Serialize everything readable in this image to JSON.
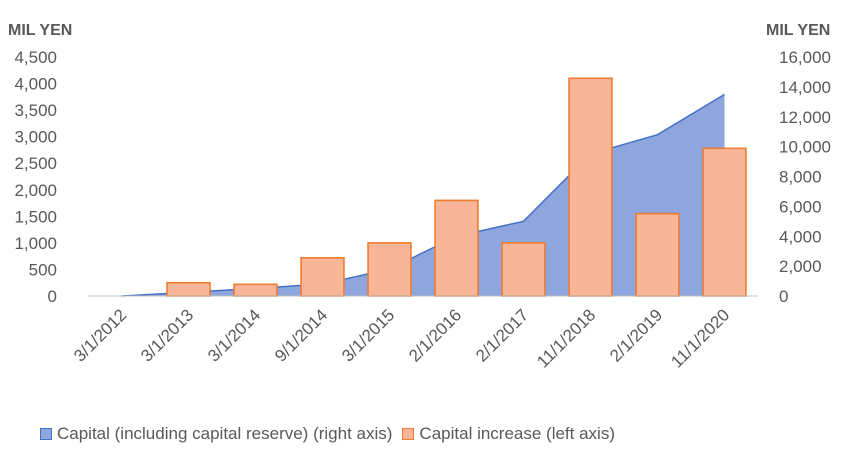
{
  "chart_data": {
    "type": "bar",
    "categories": [
      "3/1/2012",
      "3/1/2013",
      "3/1/2014",
      "9/1/2014",
      "3/1/2015",
      "2/1/2016",
      "2/1/2017",
      "11/1/2018",
      "2/1/2019",
      "11/1/2020"
    ],
    "series": [
      {
        "name": "Capital (including capital reserve) (right axis)",
        "type": "area",
        "axis": "right",
        "color": "#8EA5DD",
        "line_color": "#4472C4",
        "values": [
          0,
          250,
          500,
          800,
          1800,
          4000,
          5000,
          9500,
          10800,
          13500
        ]
      },
      {
        "name": "Capital increase (left axis)",
        "type": "bar",
        "axis": "left",
        "color": "#F8B597",
        "line_color": "#ED7D31",
        "values": [
          0,
          250,
          220,
          720,
          1000,
          1800,
          1000,
          4100,
          1550,
          2780
        ]
      }
    ],
    "left_axis": {
      "label": "MIL YEN",
      "ylim": [
        0,
        4500
      ],
      "ticks": [
        "0",
        "500",
        "1,000",
        "1,500",
        "2,000",
        "2,500",
        "3,000",
        "3,500",
        "4,000",
        "4,500"
      ]
    },
    "right_axis": {
      "label": "MIL YEN",
      "ylim": [
        0,
        16000
      ],
      "ticks": [
        "0",
        "2,000",
        "4,000",
        "6,000",
        "8,000",
        "10,000",
        "12,000",
        "14,000",
        "16,000"
      ]
    },
    "legend": "bottom",
    "grid": false
  }
}
